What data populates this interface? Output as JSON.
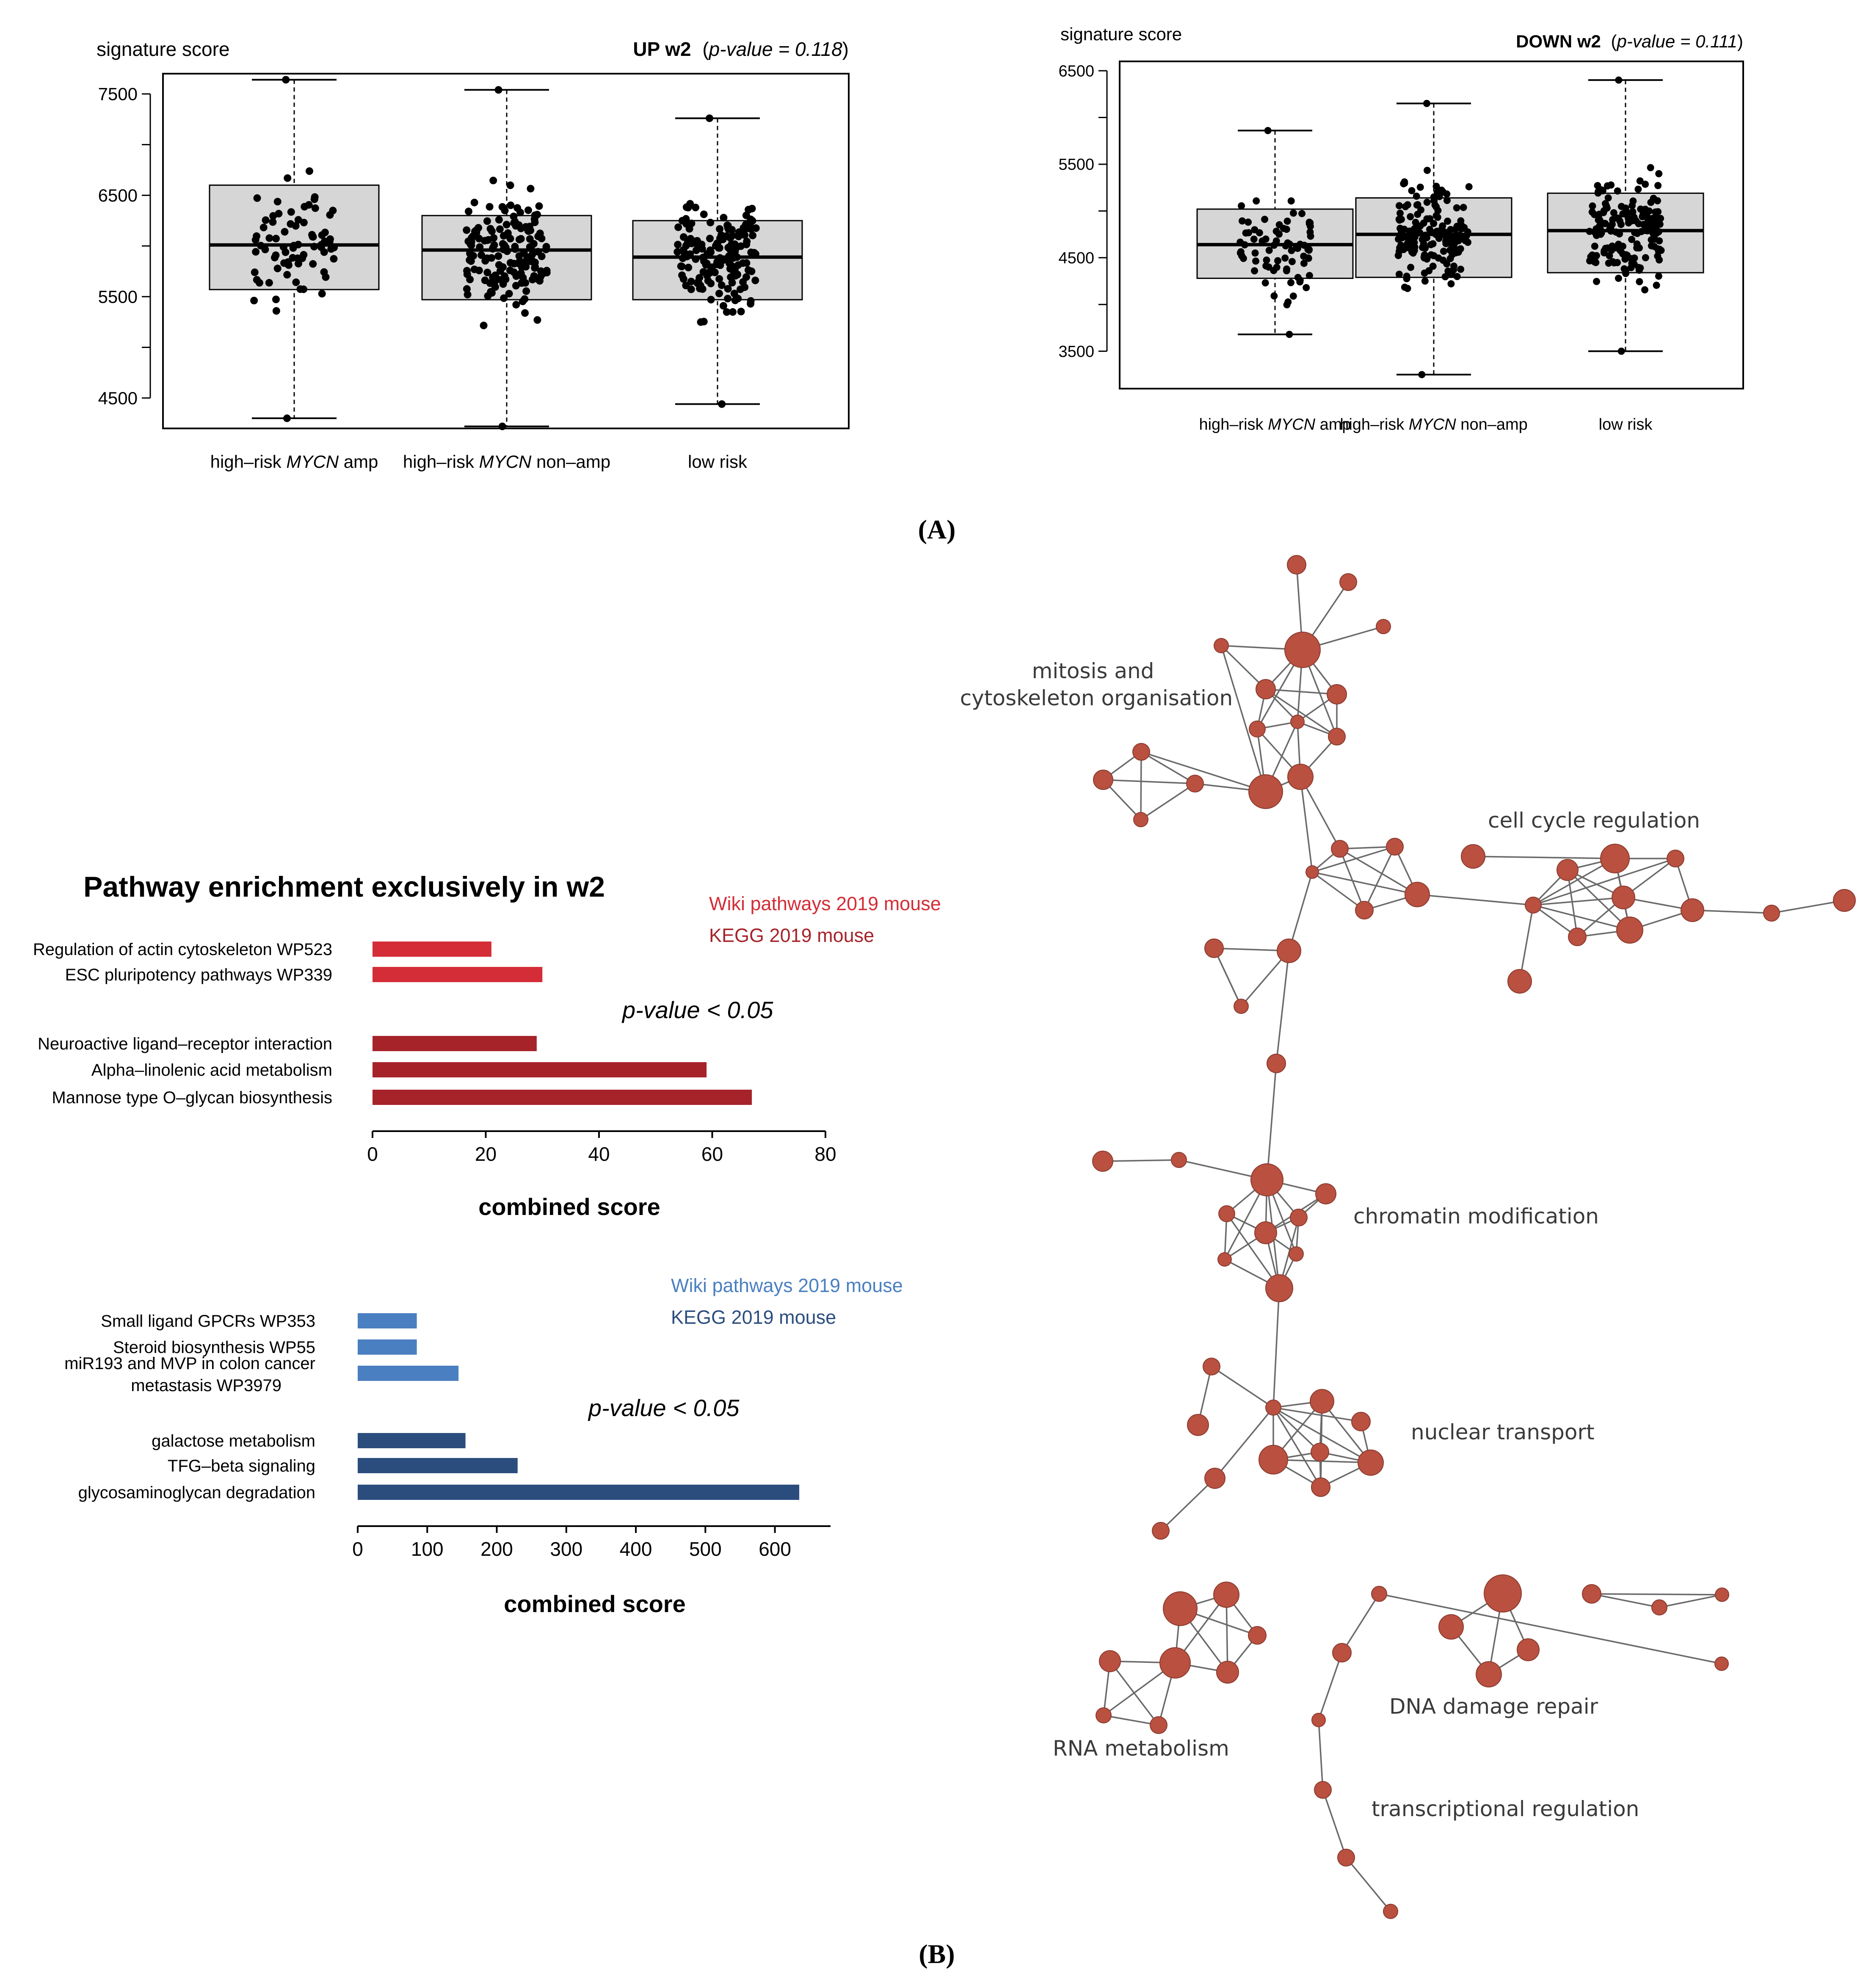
{
  "panel_labels": {
    "a": "(A)",
    "b": "(B)"
  },
  "chart_data": [
    {
      "type": "box",
      "id": "up",
      "ylabel": "signature score",
      "title_bold": "UP w2",
      "title_paren_open": "(",
      "title_pval": "p-value = 0.118",
      "title_paren_close": ")",
      "ylim": [
        4200,
        7700
      ],
      "yticks": [
        4500,
        5500,
        6500,
        7500
      ],
      "yminor": [
        5000,
        6000,
        7000
      ],
      "categories": [
        {
          "pre": "high–risk ",
          "ital": "MYCN",
          "post": " amp"
        },
        {
          "pre": "high–risk ",
          "ital": "MYCN",
          "post": " non–amp"
        },
        {
          "pre": "low risk",
          "ital": "",
          "post": ""
        }
      ],
      "boxes": [
        {
          "min": 4300,
          "q1": 5570,
          "median": 6010,
          "q3": 6600,
          "max": 7640,
          "n": 75,
          "seed": 11
        },
        {
          "min": 4220,
          "q1": 5470,
          "median": 5960,
          "q3": 6300,
          "max": 7540,
          "n": 160,
          "seed": 23
        },
        {
          "min": 4440,
          "q1": 5470,
          "median": 5890,
          "q3": 6250,
          "max": 7260,
          "n": 160,
          "seed": 37
        }
      ]
    },
    {
      "type": "box",
      "id": "down",
      "ylabel": "signature score",
      "title_bold": "DOWN w2",
      "title_paren_open": "(",
      "title_pval": "p-value = 0.111",
      "title_paren_close": ")",
      "ylim": [
        3100,
        6600
      ],
      "yticks": [
        3500,
        4500,
        5500,
        6500
      ],
      "yminor": [
        4000,
        5000,
        6000
      ],
      "categories": [
        {
          "pre": "high–risk ",
          "ital": "MYCN",
          "post": " amp"
        },
        {
          "pre": "high–risk ",
          "ital": "MYCN",
          "post": " non–amp"
        },
        {
          "pre": "low risk",
          "ital": "",
          "post": ""
        }
      ],
      "boxes": [
        {
          "min": 3680,
          "q1": 4280,
          "median": 4640,
          "q3": 5020,
          "max": 5860,
          "n": 75,
          "seed": 41
        },
        {
          "min": 3250,
          "q1": 4290,
          "median": 4750,
          "q3": 5140,
          "max": 6150,
          "n": 160,
          "seed": 53
        },
        {
          "min": 3500,
          "q1": 4340,
          "median": 4790,
          "q3": 5190,
          "max": 6400,
          "n": 160,
          "seed": 67
        }
      ]
    },
    {
      "type": "bar",
      "orientation": "horizontal",
      "id": "red",
      "title": "Pathway enrichment exclusively in w2",
      "pvalue_note": "p-value < 0.05",
      "xlabel": "combined score",
      "xlim": [
        0,
        80
      ],
      "xticks": [
        0,
        20,
        40,
        60,
        80
      ],
      "legend": [
        {
          "label": "Wiki pathways 2019 mouse",
          "color": "#d42d37"
        },
        {
          "label": "KEGG 2019 mouse",
          "color": "#a6232a"
        }
      ],
      "bars": [
        {
          "label": "Regulation of actin cytoskeleton WP523",
          "value": 21,
          "series": 0
        },
        {
          "label": "ESC pluripotency pathways WP339",
          "value": 30,
          "series": 0
        },
        {
          "label": "Neuroactive ligand–receptor interaction",
          "value": 29,
          "series": 1
        },
        {
          "label": "Alpha–linolenic acid metabolism",
          "value": 59,
          "series": 1
        },
        {
          "label": "Mannose type O–glycan biosynthesis",
          "value": 67,
          "series": 1
        }
      ]
    },
    {
      "type": "bar",
      "orientation": "horizontal",
      "id": "blue",
      "pvalue_note": "p-value < 0.05",
      "xlabel": "combined score",
      "xlim": [
        0,
        680
      ],
      "xticks": [
        0,
        100,
        200,
        300,
        400,
        500,
        600
      ],
      "legend": [
        {
          "label": "Wiki pathways 2019 mouse",
          "color": "#4a7fc1"
        },
        {
          "label": "KEGG 2019 mouse",
          "color": "#2b4d7e"
        }
      ],
      "bars": [
        {
          "label": "Small ligand GPCRs WP353",
          "value": 85,
          "series": 0
        },
        {
          "label": "Steroid biosynthesis WP55",
          "value": 85,
          "series": 0
        },
        {
          "label": "miR193 and MVP in colon cancer",
          "label2": "metastasis WP3979",
          "value": 145,
          "series": 0
        },
        {
          "label": "galactose metabolism",
          "value": 155,
          "series": 1
        },
        {
          "label": "TFG–beta signaling",
          "value": 230,
          "series": 1
        },
        {
          "label": "glycosaminoglycan degradation",
          "value": 635,
          "series": 1
        }
      ]
    }
  ],
  "network": {
    "node_color": "#b95040",
    "edge_color": "#6a6a6a",
    "clusters": [
      {
        "line1": "mitosis and",
        "line2": "cytoskeleton organisation"
      },
      {
        "line1": "cell cycle regulation"
      },
      {
        "line1": "chromatin modification"
      },
      {
        "line1": "nuclear transport"
      },
      {
        "line1": "RNA metabolism"
      },
      {
        "line1": "DNA damage repair"
      },
      {
        "line1": "transcriptional regulation"
      }
    ]
  }
}
